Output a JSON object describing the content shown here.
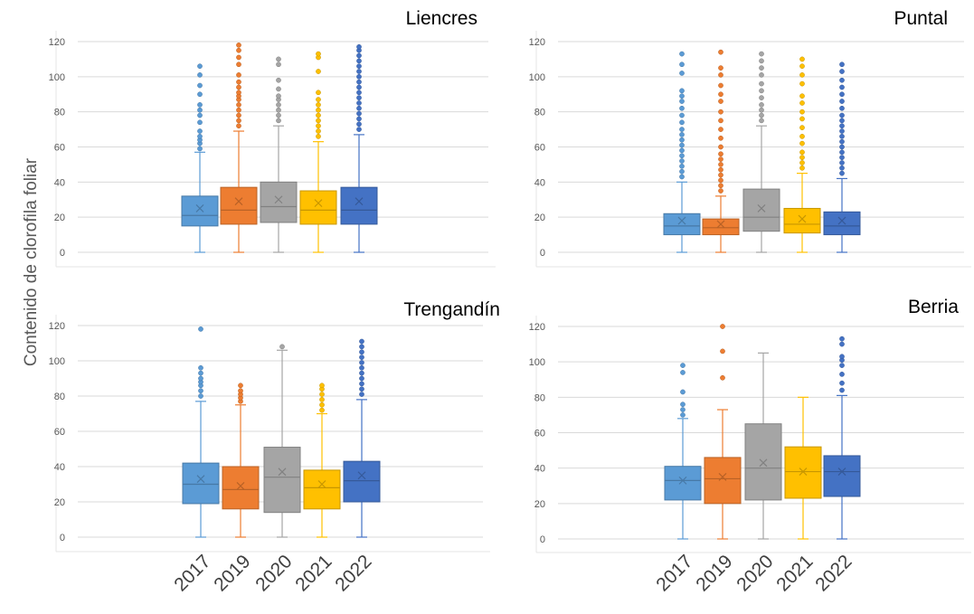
{
  "chart_data": {
    "type": "box",
    "ylabel": "Contenido de clorofila foliar",
    "categories": [
      "2017",
      "2019",
      "2020",
      "2021",
      "2022"
    ],
    "colors": {
      "2017": "#5B9BD5",
      "2019": "#ED7D31",
      "2020": "#A5A5A5",
      "2021": "#FFC000",
      "2022": "#4472C4"
    },
    "ylim": [
      0,
      120
    ],
    "yticks": [
      0,
      20,
      40,
      60,
      80,
      100,
      120
    ],
    "grid": true,
    "panels": [
      {
        "title": "Liencres",
        "boxes": [
          {
            "year": "2017",
            "min": 0,
            "q1": 15,
            "median": 21,
            "mean": 25,
            "q3": 32,
            "max": 57,
            "outliers": [
              59,
              62,
              64,
              66,
              69,
              74,
              78,
              81,
              84,
              90,
              95,
              101,
              106
            ]
          },
          {
            "year": "2019",
            "min": 0,
            "q1": 16,
            "median": 24,
            "mean": 29,
            "q3": 37,
            "max": 69,
            "outliers": [
              72,
              75,
              78,
              81,
              84,
              87,
              89,
              91,
              94,
              97,
              101,
              107,
              111,
              115,
              118
            ]
          },
          {
            "year": "2020",
            "min": 0,
            "q1": 17,
            "median": 26,
            "mean": 30,
            "q3": 40,
            "max": 72,
            "outliers": [
              75,
              78,
              81,
              84,
              87,
              89,
              93,
              98,
              107,
              110
            ]
          },
          {
            "year": "2021",
            "min": 0,
            "q1": 16,
            "median": 24,
            "mean": 28,
            "q3": 35,
            "max": 63,
            "outliers": [
              66,
              69,
              72,
              75,
              78,
              81,
              84,
              87,
              91,
              103,
              111,
              113
            ]
          },
          {
            "year": "2022",
            "min": 0,
            "q1": 16,
            "median": 24,
            "mean": 29,
            "q3": 37,
            "max": 67,
            "outliers": [
              70,
              73,
              76,
              79,
              82,
              85,
              88,
              91,
              94,
              97,
              100,
              103,
              106,
              109,
              112,
              115,
              117
            ]
          }
        ]
      },
      {
        "title": "Puntal",
        "boxes": [
          {
            "year": "2017",
            "min": 0,
            "q1": 10,
            "median": 15,
            "mean": 18,
            "q3": 22,
            "max": 40,
            "outliers": [
              43,
              46,
              49,
              52,
              55,
              58,
              61,
              64,
              67,
              70,
              74,
              78,
              82,
              86,
              89,
              92,
              102,
              107,
              113
            ]
          },
          {
            "year": "2019",
            "min": 0,
            "q1": 10,
            "median": 14,
            "mean": 16,
            "q3": 19,
            "max": 32,
            "outliers": [
              35,
              38,
              41,
              44,
              47,
              50,
              53,
              56,
              60,
              65,
              70,
              75,
              80,
              86,
              90,
              95,
              101,
              105,
              114
            ]
          },
          {
            "year": "2020",
            "min": 0,
            "q1": 12,
            "median": 20,
            "mean": 25,
            "q3": 36,
            "max": 72,
            "outliers": [
              75,
              78,
              81,
              84,
              88,
              92,
              96,
              101,
              105,
              109,
              113
            ]
          },
          {
            "year": "2021",
            "min": 0,
            "q1": 11,
            "median": 16,
            "mean": 19,
            "q3": 25,
            "max": 45,
            "outliers": [
              48,
              51,
              54,
              57,
              62,
              66,
              71,
              76,
              80,
              85,
              89,
              96,
              101,
              106,
              110
            ]
          },
          {
            "year": "2022",
            "min": 0,
            "q1": 10,
            "median": 15,
            "mean": 18,
            "q3": 23,
            "max": 42,
            "outliers": [
              45,
              48,
              51,
              54,
              57,
              60,
              63,
              66,
              69,
              72,
              75,
              78,
              82,
              86,
              90,
              94,
              98,
              103,
              107
            ]
          }
        ]
      },
      {
        "title": "Trengandín",
        "boxes": [
          {
            "year": "2017",
            "min": 0,
            "q1": 19,
            "median": 30,
            "mean": 33,
            "q3": 42,
            "max": 77,
            "outliers": [
              80,
              83,
              86,
              88,
              90,
              93,
              96,
              118
            ]
          },
          {
            "year": "2019",
            "min": 0,
            "q1": 16,
            "median": 27,
            "mean": 29,
            "q3": 40,
            "max": 75,
            "outliers": [
              77,
              79,
              81,
              83,
              86
            ]
          },
          {
            "year": "2020",
            "min": 0,
            "q1": 14,
            "median": 34,
            "mean": 37,
            "q3": 51,
            "max": 106,
            "outliers": [
              108
            ]
          },
          {
            "year": "2021",
            "min": 0,
            "q1": 16,
            "median": 28,
            "mean": 30,
            "q3": 38,
            "max": 70,
            "outliers": [
              72,
              75,
              78,
              81,
              84,
              86
            ]
          },
          {
            "year": "2022",
            "min": 0,
            "q1": 20,
            "median": 32,
            "mean": 35,
            "q3": 43,
            "max": 78,
            "outliers": [
              81,
              84,
              87,
              90,
              93,
              96,
              99,
              102,
              105,
              108,
              111
            ]
          }
        ]
      },
      {
        "title": "Berria",
        "boxes": [
          {
            "year": "2017",
            "min": 0,
            "q1": 22,
            "median": 33,
            "mean": 33,
            "q3": 41,
            "max": 68,
            "outliers": [
              70,
              73,
              76,
              83,
              94,
              98
            ]
          },
          {
            "year": "2019",
            "min": 0,
            "q1": 20,
            "median": 34,
            "mean": 35,
            "q3": 46,
            "max": 73,
            "outliers": [
              91,
              106,
              120
            ]
          },
          {
            "year": "2020",
            "min": 0,
            "q1": 22,
            "median": 40,
            "mean": 43,
            "q3": 65,
            "max": 105,
            "outliers": []
          },
          {
            "year": "2021",
            "min": 0,
            "q1": 23,
            "median": 38,
            "mean": 38,
            "q3": 52,
            "max": 80,
            "outliers": []
          },
          {
            "year": "2022",
            "min": 0,
            "q1": 24,
            "median": 38,
            "mean": 38,
            "q3": 47,
            "max": 81,
            "outliers": [
              84,
              88,
              93,
              98,
              101,
              103,
              110,
              113
            ]
          }
        ]
      }
    ]
  }
}
